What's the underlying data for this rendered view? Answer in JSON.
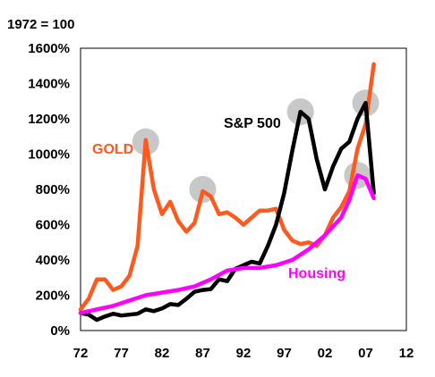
{
  "chart_data": {
    "type": "line",
    "base_note": "1972 = 100",
    "x_ticks": [
      "72",
      "77",
      "82",
      "87",
      "92",
      "97",
      "02",
      "07",
      "12"
    ],
    "y_ticks": [
      "0%",
      "200%",
      "400%",
      "600%",
      "800%",
      "1000%",
      "1200%",
      "1400%",
      "1600%"
    ],
    "xlim": [
      1972,
      2012
    ],
    "ylim": [
      0,
      1600
    ],
    "grid": false,
    "series": [
      {
        "name": "GOLD",
        "color": "#ff5a1e",
        "points": [
          [
            1972,
            120
          ],
          [
            1973,
            180
          ],
          [
            1974,
            290
          ],
          [
            1975,
            290
          ],
          [
            1976,
            230
          ],
          [
            1977,
            250
          ],
          [
            1978,
            310
          ],
          [
            1979,
            480
          ],
          [
            1980,
            1080
          ],
          [
            1981,
            800
          ],
          [
            1982,
            660
          ],
          [
            1983,
            730
          ],
          [
            1984,
            620
          ],
          [
            1985,
            560
          ],
          [
            1986,
            610
          ],
          [
            1987,
            790
          ],
          [
            1988,
            760
          ],
          [
            1989,
            660
          ],
          [
            1990,
            670
          ],
          [
            1991,
            640
          ],
          [
            1992,
            600
          ],
          [
            1993,
            640
          ],
          [
            1994,
            680
          ],
          [
            1995,
            680
          ],
          [
            1996,
            690
          ],
          [
            1997,
            570
          ],
          [
            1998,
            510
          ],
          [
            1999,
            490
          ],
          [
            2000,
            500
          ],
          [
            2001,
            480
          ],
          [
            2002,
            540
          ],
          [
            2003,
            640
          ],
          [
            2004,
            700
          ],
          [
            2005,
            790
          ],
          [
            2006,
            1030
          ],
          [
            2007,
            1170
          ],
          [
            2008,
            1510
          ]
        ]
      },
      {
        "name": "S&P 500",
        "color": "#000000",
        "points": [
          [
            1972,
            100
          ],
          [
            1973,
            90
          ],
          [
            1974,
            60
          ],
          [
            1975,
            80
          ],
          [
            1976,
            95
          ],
          [
            1977,
            85
          ],
          [
            1978,
            90
          ],
          [
            1979,
            95
          ],
          [
            1980,
            120
          ],
          [
            1981,
            110
          ],
          [
            1982,
            125
          ],
          [
            1983,
            150
          ],
          [
            1984,
            145
          ],
          [
            1985,
            180
          ],
          [
            1986,
            220
          ],
          [
            1987,
            230
          ],
          [
            1988,
            235
          ],
          [
            1989,
            290
          ],
          [
            1990,
            280
          ],
          [
            1991,
            350
          ],
          [
            1992,
            370
          ],
          [
            1993,
            390
          ],
          [
            1994,
            380
          ],
          [
            1995,
            480
          ],
          [
            1996,
            600
          ],
          [
            1997,
            780
          ],
          [
            1998,
            1020
          ],
          [
            1999,
            1240
          ],
          [
            2000,
            1200
          ],
          [
            2001,
            970
          ],
          [
            2002,
            800
          ],
          [
            2003,
            930
          ],
          [
            2004,
            1030
          ],
          [
            2005,
            1070
          ],
          [
            2006,
            1200
          ],
          [
            2007,
            1290
          ],
          [
            2008,
            780
          ]
        ]
      },
      {
        "name": "Housing",
        "color": "#ff00ff",
        "points": [
          [
            1972,
            100
          ],
          [
            1974,
            120
          ],
          [
            1976,
            140
          ],
          [
            1978,
            170
          ],
          [
            1980,
            200
          ],
          [
            1982,
            215
          ],
          [
            1984,
            230
          ],
          [
            1986,
            250
          ],
          [
            1988,
            290
          ],
          [
            1990,
            340
          ],
          [
            1992,
            355
          ],
          [
            1994,
            355
          ],
          [
            1996,
            370
          ],
          [
            1998,
            400
          ],
          [
            2000,
            460
          ],
          [
            2002,
            540
          ],
          [
            2004,
            640
          ],
          [
            2005,
            740
          ],
          [
            2006,
            880
          ],
          [
            2007,
            860
          ],
          [
            2008,
            750
          ]
        ]
      }
    ],
    "peak_markers": [
      [
        1980,
        1070
      ],
      [
        1987,
        800
      ],
      [
        1999,
        1240
      ],
      [
        2006,
        880
      ],
      [
        2007,
        1290
      ]
    ],
    "series_labels": {
      "gold": "GOLD",
      "sp500": "S&P 500",
      "housing": "Housing"
    }
  }
}
